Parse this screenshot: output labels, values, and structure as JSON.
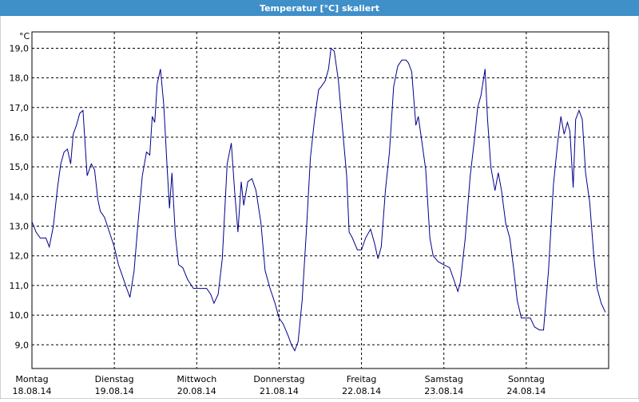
{
  "chart_data": {
    "type": "line",
    "title": "Temperatur [°C] skaliert",
    "y_unit": "°C",
    "xlim": [
      0,
      7
    ],
    "ylim": [
      8.2,
      19.55
    ],
    "grid": true,
    "xticks": [
      {
        "value": 0,
        "label": [
          "Montag",
          "18.08.14"
        ]
      },
      {
        "value": 1,
        "label": [
          "Dienstag",
          "19.08.14"
        ]
      },
      {
        "value": 2,
        "label": [
          "Mittwoch",
          "20.08.14"
        ]
      },
      {
        "value": 3,
        "label": [
          "Donnerstag",
          "21.08.14"
        ]
      },
      {
        "value": 4,
        "label": [
          "Freitag",
          "22.08.14"
        ]
      },
      {
        "value": 5,
        "label": [
          "Samstag",
          "23.08.14"
        ]
      },
      {
        "value": 6,
        "label": [
          "Sonntag",
          "24.08.14"
        ]
      }
    ],
    "yticks": [
      {
        "value": 9,
        "label": "9,0"
      },
      {
        "value": 10,
        "label": "10,0"
      },
      {
        "value": 11,
        "label": "11,0"
      },
      {
        "value": 12,
        "label": "12,0"
      },
      {
        "value": 13,
        "label": "13,0"
      },
      {
        "value": 14,
        "label": "14,0"
      },
      {
        "value": 15,
        "label": "15,0"
      },
      {
        "value": 16,
        "label": "16,0"
      },
      {
        "value": 17,
        "label": "17,0"
      },
      {
        "value": 18,
        "label": "18,0"
      },
      {
        "value": 19,
        "label": "19,0"
      }
    ],
    "series": [
      {
        "color": "#00008c",
        "x": [
          0,
          0.05,
          0.1,
          0.17,
          0.21,
          0.26,
          0.31,
          0.35,
          0.39,
          0.43,
          0.47,
          0.5,
          0.54,
          0.58,
          0.62,
          0.67,
          0.72,
          0.76,
          0.8,
          0.83,
          0.88,
          0.94,
          1.0,
          1.05,
          1.1,
          1.15,
          1.19,
          1.24,
          1.29,
          1.34,
          1.39,
          1.43,
          1.46,
          1.49,
          1.52,
          1.56,
          1.6,
          1.64,
          1.67,
          1.7,
          1.74,
          1.78,
          1.83,
          1.89,
          1.96,
          2.04,
          2.12,
          2.17,
          2.21,
          2.26,
          2.31,
          2.37,
          2.42,
          2.46,
          2.5,
          2.54,
          2.57,
          2.62,
          2.67,
          2.72,
          2.78,
          2.83,
          2.89,
          2.95,
          3.0,
          3.05,
          3.11,
          3.15,
          3.19,
          3.23,
          3.28,
          3.33,
          3.38,
          3.43,
          3.48,
          3.51,
          3.56,
          3.6,
          3.63,
          3.67,
          3.72,
          3.76,
          3.82,
          3.85,
          3.89,
          3.95,
          4.0,
          4.05,
          4.11,
          4.16,
          4.2,
          4.24,
          4.29,
          4.34,
          4.39,
          4.44,
          4.49,
          4.54,
          4.57,
          4.61,
          4.66,
          4.69,
          4.73,
          4.78,
          4.83,
          4.87,
          4.93,
          5.0,
          5.07,
          5.12,
          5.17,
          5.2,
          5.26,
          5.32,
          5.37,
          5.41,
          5.45,
          5.5,
          5.53,
          5.57,
          5.62,
          5.66,
          5.7,
          5.75,
          5.8,
          5.85,
          5.89,
          5.94,
          6.0,
          6.05,
          6.1,
          6.16,
          6.21,
          6.27,
          6.33,
          6.38,
          6.42,
          6.46,
          6.5,
          6.53,
          6.57,
          6.6,
          6.64,
          6.68,
          6.72,
          6.77,
          6.82,
          6.86,
          6.91,
          6.96
        ],
        "values": [
          13.15,
          12.8,
          12.6,
          12.6,
          12.3,
          13.0,
          14.3,
          15.1,
          15.5,
          15.6,
          15.1,
          16.1,
          16.4,
          16.8,
          16.9,
          14.7,
          15.1,
          14.9,
          13.9,
          13.5,
          13.3,
          12.8,
          12.3,
          11.7,
          11.3,
          10.9,
          10.6,
          11.5,
          13.2,
          14.7,
          15.5,
          15.4,
          16.7,
          16.5,
          17.8,
          18.3,
          17.1,
          15.0,
          13.6,
          14.8,
          12.7,
          11.7,
          11.6,
          11.2,
          10.9,
          10.9,
          10.9,
          10.7,
          10.4,
          10.7,
          11.9,
          15.1,
          15.8,
          14.2,
          12.8,
          14.5,
          13.7,
          14.5,
          14.6,
          14.2,
          13.1,
          11.5,
          10.9,
          10.4,
          9.9,
          9.7,
          9.3,
          9.0,
          8.8,
          9.1,
          10.5,
          12.8,
          15.3,
          16.6,
          17.6,
          17.7,
          17.9,
          18.3,
          19.0,
          18.9,
          17.9,
          16.6,
          14.7,
          12.8,
          12.6,
          12.2,
          12.2,
          12.6,
          12.9,
          12.4,
          11.9,
          12.3,
          14.2,
          15.5,
          17.7,
          18.4,
          18.6,
          18.6,
          18.5,
          18.2,
          16.4,
          16.7,
          15.9,
          14.9,
          12.6,
          12.0,
          11.8,
          11.7,
          11.6,
          11.2,
          10.8,
          11.1,
          12.6,
          14.7,
          15.9,
          17.0,
          17.4,
          18.3,
          16.6,
          15.0,
          14.2,
          14.8,
          14.2,
          13.1,
          12.6,
          11.5,
          10.5,
          9.9,
          9.9,
          9.9,
          9.6,
          9.5,
          9.5,
          11.5,
          14.4,
          15.8,
          16.7,
          16.1,
          16.5,
          16.2,
          14.3,
          16.6,
          16.9,
          16.6,
          14.8,
          13.8,
          12.0,
          10.9,
          10.4,
          10.1
        ]
      }
    ]
  }
}
